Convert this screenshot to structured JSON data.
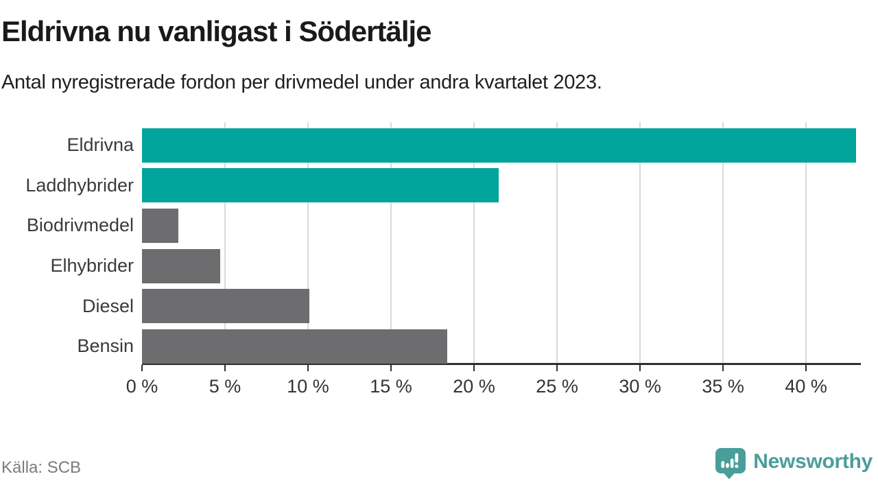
{
  "page": {
    "title": "Eldrivna nu vanligast i Södertälje",
    "subtitle": "Antal nyregistrerade fordon per drivmedel under andra kvartalet 2023.",
    "source": "Källa: SCB"
  },
  "branding": {
    "name": "Newsworthy",
    "icon": "newsworthy-logo-icon",
    "color": "#4a9e99"
  },
  "colors": {
    "bar_highlight": "#00a49a",
    "bar_default": "#6d6d70",
    "gridline": "#d9d9d9",
    "axis_line": "#2f2f2f",
    "text_dark": "#1a1a1a",
    "text_muted": "#7b7b7b"
  },
  "chart_data": {
    "type": "bar",
    "orientation": "horizontal",
    "title": "Eldrivna nu vanligast i Södertälje",
    "subtitle": "Antal nyregistrerade fordon per drivmedel under andra kvartalet 2023.",
    "categories": [
      "Eldrivna",
      "Laddhybrider",
      "Biodrivmedel",
      "Elhybrider",
      "Diesel",
      "Bensin"
    ],
    "values": [
      43.0,
      21.5,
      2.2,
      4.7,
      10.1,
      18.4
    ],
    "highlighted": [
      true,
      true,
      false,
      false,
      false,
      false
    ],
    "unit": "%",
    "xlabel": "",
    "ylabel": "",
    "xlim": [
      0,
      43.3
    ],
    "x_ticks": [
      0,
      5,
      10,
      15,
      20,
      25,
      30,
      35,
      40
    ],
    "x_tick_labels": [
      "0 %",
      "5 %",
      "10 %",
      "15 %",
      "20 %",
      "25 %",
      "30 %",
      "35 %",
      "40 %"
    ],
    "grid": true,
    "legend": false,
    "data_labels": false
  }
}
